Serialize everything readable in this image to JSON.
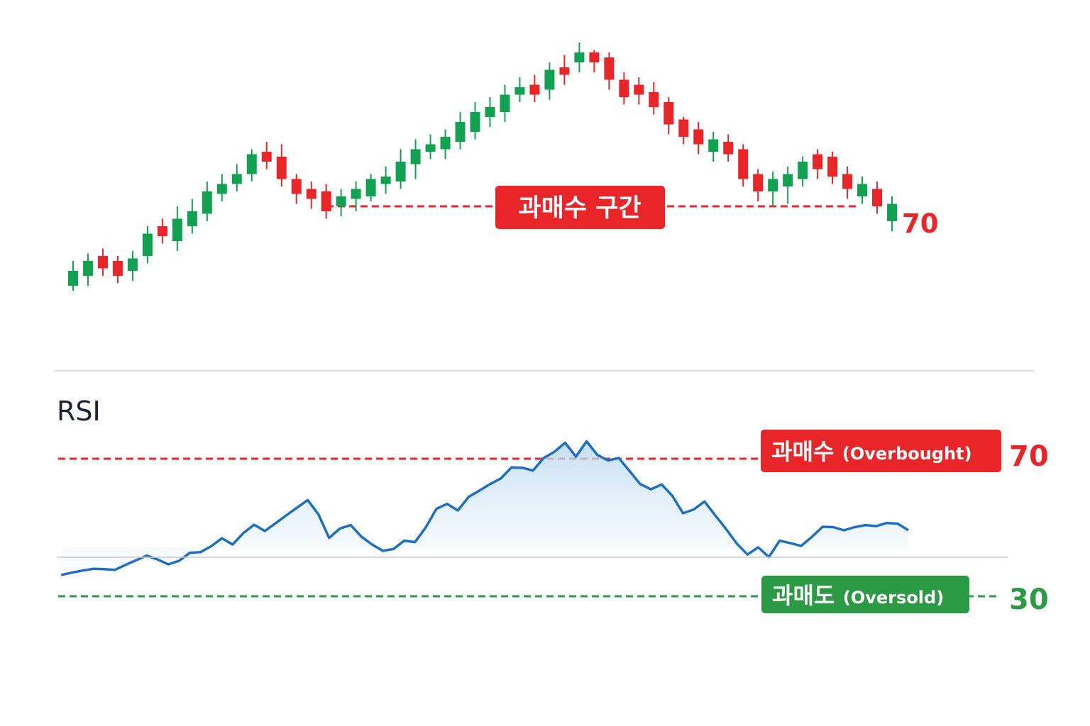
{
  "colors": {
    "up": "#12a150",
    "down": "#e8262a",
    "overbought": "#e8262a",
    "oversold": "#2c9a45",
    "rsi_line": "#1f6fc1",
    "divider": "#d4d4d4",
    "title": "#1c2434"
  },
  "price_panel": {
    "zone_label": "과매수 구간",
    "level_label": "70"
  },
  "rsi_panel": {
    "title": "RSI",
    "overbought": {
      "label": "과매수",
      "label_en": "(Overbought)",
      "level": "70"
    },
    "oversold": {
      "label": "과매도",
      "label_en": "(Oversold)",
      "level": "30"
    }
  },
  "chart_data": [
    {
      "type": "candlestick",
      "title": "",
      "ylim": [
        0,
        100
      ],
      "threshold_level": 64,
      "candles": [
        {
          "o": 18,
          "c": 24,
          "h": 28,
          "l": 16,
          "dir": "up"
        },
        {
          "o": 22,
          "c": 28,
          "h": 31,
          "l": 18,
          "dir": "up"
        },
        {
          "o": 30,
          "c": 25,
          "h": 33,
          "l": 22,
          "dir": "down"
        },
        {
          "o": 28,
          "c": 22,
          "h": 30,
          "l": 19,
          "dir": "down"
        },
        {
          "o": 24,
          "c": 29,
          "h": 32,
          "l": 20,
          "dir": "up"
        },
        {
          "o": 30,
          "c": 39,
          "h": 42,
          "l": 27,
          "dir": "up"
        },
        {
          "o": 42,
          "c": 38,
          "h": 45,
          "l": 35,
          "dir": "down"
        },
        {
          "o": 36,
          "c": 45,
          "h": 50,
          "l": 32,
          "dir": "up"
        },
        {
          "o": 42,
          "c": 48,
          "h": 53,
          "l": 39,
          "dir": "up"
        },
        {
          "o": 47,
          "c": 56,
          "h": 60,
          "l": 44,
          "dir": "up"
        },
        {
          "o": 55,
          "c": 59,
          "h": 63,
          "l": 52,
          "dir": "up"
        },
        {
          "o": 59,
          "c": 63,
          "h": 67,
          "l": 56,
          "dir": "up"
        },
        {
          "o": 63,
          "c": 71,
          "h": 73,
          "l": 60,
          "dir": "up"
        },
        {
          "o": 72,
          "c": 68,
          "h": 76,
          "l": 65,
          "dir": "down"
        },
        {
          "o": 70,
          "c": 61,
          "h": 75,
          "l": 58,
          "dir": "down"
        },
        {
          "o": 61,
          "c": 55,
          "h": 63,
          "l": 51,
          "dir": "down"
        },
        {
          "o": 57,
          "c": 53,
          "h": 60,
          "l": 49,
          "dir": "down"
        },
        {
          "o": 56,
          "c": 48,
          "h": 59,
          "l": 45,
          "dir": "down"
        },
        {
          "o": 50,
          "c": 54,
          "h": 57,
          "l": 46,
          "dir": "up"
        },
        {
          "o": 53,
          "c": 57,
          "h": 60,
          "l": 48,
          "dir": "up"
        },
        {
          "o": 54,
          "c": 61,
          "h": 63,
          "l": 52,
          "dir": "up"
        },
        {
          "o": 59,
          "c": 62,
          "h": 66,
          "l": 55,
          "dir": "up"
        },
        {
          "o": 60,
          "c": 68,
          "h": 73,
          "l": 57,
          "dir": "up"
        },
        {
          "o": 67,
          "c": 73,
          "h": 77,
          "l": 61,
          "dir": "up"
        },
        {
          "o": 72,
          "c": 75,
          "h": 79,
          "l": 69,
          "dir": "up"
        },
        {
          "o": 73,
          "c": 78,
          "h": 81,
          "l": 69,
          "dir": "up"
        },
        {
          "o": 76,
          "c": 84,
          "h": 88,
          "l": 73,
          "dir": "up"
        },
        {
          "o": 80,
          "c": 88,
          "h": 92,
          "l": 77,
          "dir": "up"
        },
        {
          "o": 86,
          "c": 90,
          "h": 94,
          "l": 82,
          "dir": "up"
        },
        {
          "o": 88,
          "c": 95,
          "h": 99,
          "l": 84,
          "dir": "up"
        },
        {
          "o": 95,
          "c": 98,
          "h": 102,
          "l": 92,
          "dir": "up"
        },
        {
          "o": 99,
          "c": 95,
          "h": 103,
          "l": 92,
          "dir": "down"
        },
        {
          "o": 97,
          "c": 105,
          "h": 108,
          "l": 93,
          "dir": "up"
        },
        {
          "o": 106,
          "c": 103,
          "h": 111,
          "l": 99,
          "dir": "down"
        },
        {
          "o": 108,
          "c": 112,
          "h": 116,
          "l": 104,
          "dir": "up"
        },
        {
          "o": 112,
          "c": 108,
          "h": 113,
          "l": 104,
          "dir": "down"
        },
        {
          "o": 110,
          "c": 101,
          "h": 112,
          "l": 97,
          "dir": "down"
        },
        {
          "o": 101,
          "c": 94,
          "h": 104,
          "l": 91,
          "dir": "down"
        },
        {
          "o": 99,
          "c": 95,
          "h": 102,
          "l": 91,
          "dir": "down"
        },
        {
          "o": 96,
          "c": 90,
          "h": 100,
          "l": 87,
          "dir": "down"
        },
        {
          "o": 92,
          "c": 83,
          "h": 94,
          "l": 79,
          "dir": "down"
        },
        {
          "o": 85,
          "c": 78,
          "h": 86,
          "l": 75,
          "dir": "down"
        },
        {
          "o": 81,
          "c": 75,
          "h": 84,
          "l": 71,
          "dir": "down"
        },
        {
          "o": 72,
          "c": 77,
          "h": 80,
          "l": 68,
          "dir": "up"
        },
        {
          "o": 76,
          "c": 71,
          "h": 79,
          "l": 68,
          "dir": "down"
        },
        {
          "o": 73,
          "c": 61,
          "h": 75,
          "l": 58,
          "dir": "down"
        },
        {
          "o": 63,
          "c": 56,
          "h": 65,
          "l": 52,
          "dir": "down"
        },
        {
          "o": 56,
          "c": 61,
          "h": 64,
          "l": 50,
          "dir": "up"
        },
        {
          "o": 58,
          "c": 63,
          "h": 66,
          "l": 51,
          "dir": "up"
        },
        {
          "o": 61,
          "c": 68,
          "h": 70,
          "l": 58,
          "dir": "up"
        },
        {
          "o": 71,
          "c": 65,
          "h": 73,
          "l": 61,
          "dir": "down"
        },
        {
          "o": 70,
          "c": 62,
          "h": 72,
          "l": 59,
          "dir": "down"
        },
        {
          "o": 63,
          "c": 57,
          "h": 66,
          "l": 53,
          "dir": "down"
        },
        {
          "o": 54,
          "c": 59,
          "h": 62,
          "l": 51,
          "dir": "up"
        },
        {
          "o": 57,
          "c": 50,
          "h": 60,
          "l": 47,
          "dir": "down"
        },
        {
          "o": 44,
          "c": 51,
          "h": 54,
          "l": 40,
          "dir": "up"
        }
      ]
    },
    {
      "type": "line",
      "title": "RSI",
      "ylim": [
        0,
        100
      ],
      "levels": [
        70,
        30
      ],
      "values": [
        36.5,
        37.2,
        37.8,
        38.3,
        38.2,
        38.0,
        39.4,
        40.8,
        42.1,
        41.0,
        39.6,
        40.6,
        42.9,
        43.1,
        44.8,
        47.1,
        45.3,
        48.6,
        51.0,
        49.2,
        51.4,
        53.7,
        55.9,
        58.1,
        54.0,
        47.2,
        49.9,
        50.9,
        47.6,
        45.3,
        43.5,
        44.0,
        46.4,
        46.0,
        50.2,
        55.6,
        57.0,
        55.1,
        59.0,
        60.8,
        62.7,
        64.3,
        67.5,
        67.4,
        66.6,
        70.2,
        72.0,
        74.6,
        70.6,
        75.0,
        71.1,
        69.5,
        70.2,
        66.5,
        62.7,
        61.2,
        62.6,
        59.3,
        54.3,
        55.4,
        57.7,
        53.7,
        49.8,
        45.6,
        42.4,
        44.5,
        41.7,
        46.4,
        45.7,
        44.9,
        47.5,
        50.4,
        50.3,
        49.4,
        50.3,
        50.9,
        50.6,
        51.5,
        51.3,
        49.4
      ]
    }
  ]
}
